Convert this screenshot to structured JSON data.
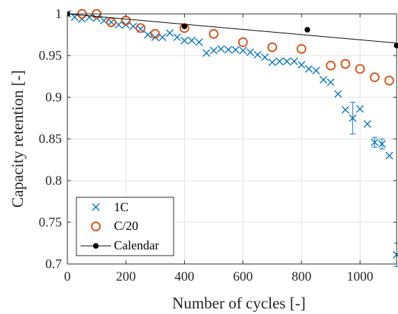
{
  "chart_data": {
    "type": "scatter",
    "title": "",
    "xlabel": "Number of cycles [-]",
    "ylabel": "Capacity retention [-]",
    "xlim": [
      0,
      1125
    ],
    "ylim": [
      0.7,
      1.0
    ],
    "xticks": [
      0,
      200,
      400,
      600,
      800,
      1000
    ],
    "yticks": [
      0.7,
      0.75,
      0.8,
      0.85,
      0.9,
      0.95,
      1
    ],
    "xtick_labels": [
      "0",
      "200",
      "400",
      "600",
      "800",
      "1000"
    ],
    "ytick_labels": [
      "0.7",
      "0.75",
      "0.8",
      "0.85",
      "0.9",
      "0.95",
      "1"
    ],
    "grid": true,
    "legend_position": "bottom-left",
    "series": [
      {
        "name": "1C",
        "marker": "x",
        "color": "#0072BD",
        "points": [
          [
            0,
            1.0
          ],
          [
            25,
            0.996
          ],
          [
            50,
            0.994
          ],
          [
            75,
            0.996
          ],
          [
            100,
            0.995
          ],
          [
            125,
            0.992
          ],
          [
            150,
            0.99
          ],
          [
            175,
            0.987
          ],
          [
            200,
            0.987
          ],
          [
            225,
            0.985
          ],
          [
            250,
            0.982
          ],
          [
            275,
            0.975
          ],
          [
            300,
            0.972
          ],
          [
            325,
            0.972
          ],
          [
            350,
            0.977
          ],
          [
            375,
            0.972
          ],
          [
            400,
            0.968
          ],
          [
            425,
            0.968
          ],
          [
            450,
            0.966
          ],
          [
            475,
            0.953
          ],
          [
            500,
            0.956
          ],
          [
            525,
            0.958
          ],
          [
            550,
            0.957
          ],
          [
            575,
            0.957
          ],
          [
            600,
            0.956
          ],
          [
            625,
            0.954
          ],
          [
            650,
            0.951
          ],
          [
            675,
            0.948
          ],
          [
            700,
            0.942
          ],
          [
            725,
            0.943
          ],
          [
            750,
            0.943
          ],
          [
            775,
            0.943
          ],
          [
            800,
            0.939
          ],
          [
            825,
            0.934
          ],
          [
            850,
            0.932
          ],
          [
            875,
            0.921
          ],
          [
            900,
            0.918
          ],
          [
            925,
            0.904
          ],
          [
            950,
            0.885
          ],
          [
            975,
            0.875
          ],
          [
            1000,
            0.886
          ],
          [
            1025,
            0.868
          ],
          [
            1050,
            0.846
          ],
          [
            1075,
            0.844
          ],
          [
            1100,
            0.83
          ],
          [
            1125,
            0.711
          ]
        ],
        "error_bars": [
          {
            "x": 975,
            "y": 0.875,
            "err": 0.019
          },
          {
            "x": 1050,
            "y": 0.846,
            "err": 0.006
          },
          {
            "x": 1075,
            "y": 0.844,
            "err": 0.006
          },
          {
            "x": 1125,
            "y": 0.711,
            "err": 0.014
          }
        ]
      },
      {
        "name": "C/20",
        "marker": "o",
        "color": "#D95319",
        "points": [
          [
            50,
            1.0
          ],
          [
            100,
            1.0
          ],
          [
            150,
            0.99
          ],
          [
            200,
            0.992
          ],
          [
            250,
            0.983
          ],
          [
            300,
            0.976
          ],
          [
            400,
            0.983
          ],
          [
            500,
            0.976
          ],
          [
            600,
            0.966
          ],
          [
            700,
            0.96
          ],
          [
            800,
            0.958
          ],
          [
            900,
            0.938
          ],
          [
            950,
            0.94
          ],
          [
            1000,
            0.934
          ],
          [
            1050,
            0.924
          ],
          [
            1100,
            0.92
          ]
        ]
      },
      {
        "name": "Calendar",
        "marker": "line-dot",
        "color": "#000000",
        "points": [
          [
            0,
            1.0
          ],
          [
            400,
            0.985
          ],
          [
            820,
            0.981
          ],
          [
            1125,
            0.962
          ]
        ],
        "fit_line": [
          [
            0,
            1.0
          ],
          [
            1125,
            0.965
          ]
        ]
      }
    ]
  }
}
